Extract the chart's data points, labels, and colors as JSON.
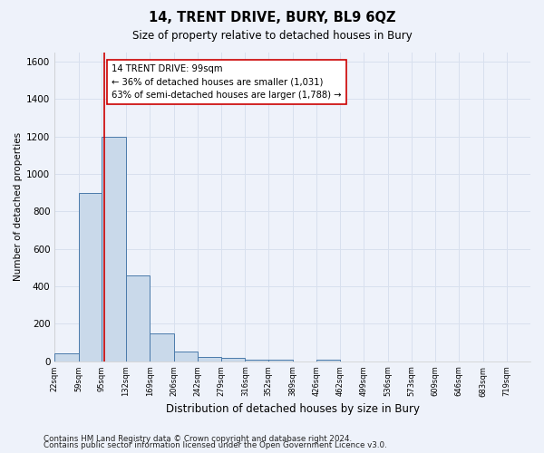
{
  "title": "14, TRENT DRIVE, BURY, BL9 6QZ",
  "subtitle": "Size of property relative to detached houses in Bury",
  "xlabel": "Distribution of detached houses by size in Bury",
  "ylabel": "Number of detached properties",
  "footer1": "Contains HM Land Registry data © Crown copyright and database right 2024.",
  "footer2": "Contains public sector information licensed under the Open Government Licence v3.0.",
  "bar_edges": [
    22,
    59,
    95,
    132,
    169,
    206,
    242,
    279,
    316,
    352,
    389,
    426,
    462,
    499,
    536,
    573,
    609,
    646,
    683,
    719,
    756
  ],
  "bar_heights": [
    40,
    900,
    1200,
    460,
    150,
    50,
    25,
    20,
    10,
    10,
    0,
    10,
    0,
    0,
    0,
    0,
    0,
    0,
    0,
    0
  ],
  "bar_color": "#c9d9ea",
  "bar_edge_color": "#4a7aaa",
  "grid_color": "#d8e0ee",
  "bg_color": "#eef2fa",
  "property_line_x": 99,
  "property_line_color": "#cc0000",
  "annotation_text": "14 TRENT DRIVE: 99sqm\n← 36% of detached houses are smaller (1,031)\n63% of semi-detached houses are larger (1,788) →",
  "annotation_box_color": "#ffffff",
  "annotation_box_edge": "#cc0000",
  "ylim": [
    0,
    1650
  ],
  "yticks": [
    0,
    200,
    400,
    600,
    800,
    1000,
    1200,
    1400,
    1600
  ],
  "xlim_left": 22,
  "xlim_right": 756
}
